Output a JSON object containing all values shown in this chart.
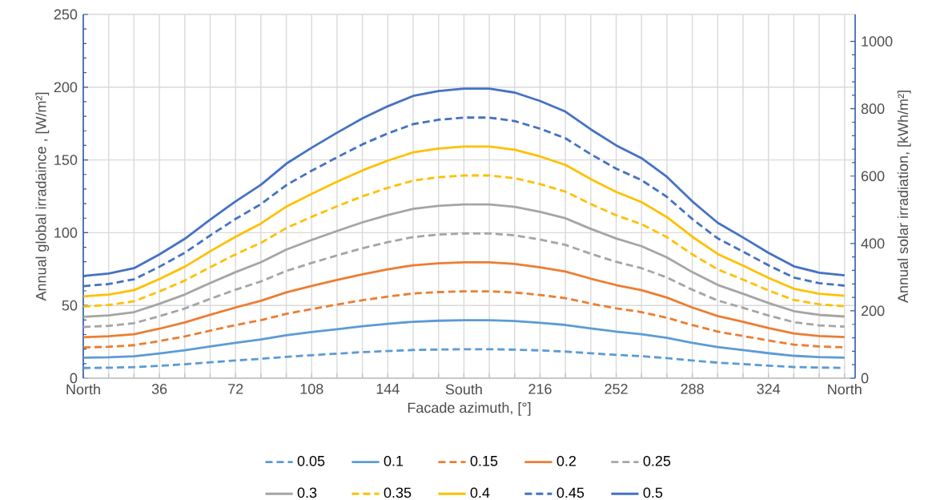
{
  "chart_data": {
    "type": "line",
    "xlabel": "Facade azimuth, [°]",
    "ylabel": "Annual global irradaince , [W/m²]",
    "y2label": "Annual solar irradiation, [kWh/m²]",
    "x": [
      0,
      12,
      24,
      36,
      48,
      60,
      72,
      84,
      96,
      108,
      120,
      132,
      144,
      156,
      168,
      180,
      192,
      204,
      216,
      228,
      240,
      252,
      264,
      276,
      288,
      300,
      312,
      324,
      336,
      348,
      360
    ],
    "xlim": [
      0,
      365
    ],
    "xticks": [
      {
        "value": 0,
        "label": "North"
      },
      {
        "value": 12,
        "label": null
      },
      {
        "value": 24,
        "label": null
      },
      36,
      {
        "value": 48,
        "label": null
      },
      {
        "value": 60,
        "label": null
      },
      72,
      {
        "value": 84,
        "label": null
      },
      {
        "value": 96,
        "label": null
      },
      108,
      {
        "value": 120,
        "label": null
      },
      {
        "value": 132,
        "label": null
      },
      144,
      {
        "value": 156,
        "label": null
      },
      {
        "value": 168,
        "label": null
      },
      {
        "value": 180,
        "label": "South"
      },
      {
        "value": 192,
        "label": null
      },
      {
        "value": 204,
        "label": null
      },
      216,
      {
        "value": 228,
        "label": null
      },
      {
        "value": 240,
        "label": null
      },
      252,
      {
        "value": 264,
        "label": null
      },
      {
        "value": 276,
        "label": null
      },
      288,
      {
        "value": 300,
        "label": null
      },
      {
        "value": 312,
        "label": null
      },
      324,
      {
        "value": 336,
        "label": null
      },
      {
        "value": 348,
        "label": null
      },
      {
        "value": 360,
        "label": "North"
      }
    ],
    "ylim": [
      0,
      250
    ],
    "yticks": [
      0,
      50,
      100,
      150,
      200,
      250
    ],
    "y2lim": [
      0,
      1080
    ],
    "y2ticks": [
      0,
      200,
      400,
      600,
      800,
      1000
    ],
    "grid": true,
    "legend": "bottom",
    "marker": "none",
    "series": [
      {
        "name": "0.05",
        "color": "#5b9bd5",
        "line_style": "dashed",
        "values": [
          7.0,
          7.2,
          7.6,
          8.5,
          9.6,
          10.9,
          12.2,
          13.3,
          14.7,
          15.8,
          16.9,
          17.9,
          18.7,
          19.4,
          19.7,
          19.9,
          19.9,
          19.6,
          19.1,
          18.3,
          17.1,
          16.0,
          15.1,
          13.8,
          12.2,
          10.7,
          9.7,
          8.6,
          7.7,
          7.3,
          7.1
        ]
      },
      {
        "name": "0.1",
        "color": "#5b9bd5",
        "line_style": "solid",
        "values": [
          14.1,
          14.4,
          15.1,
          17.0,
          19.2,
          21.8,
          24.3,
          26.6,
          29.5,
          31.7,
          33.7,
          35.7,
          37.4,
          38.8,
          39.5,
          39.8,
          39.8,
          39.3,
          38.1,
          36.6,
          34.2,
          32.0,
          30.2,
          27.7,
          24.3,
          21.4,
          19.3,
          17.2,
          15.4,
          14.5,
          14.1
        ]
      },
      {
        "name": "0.15",
        "color": "#ed7d31",
        "line_style": "dashed",
        "values": [
          21.1,
          21.6,
          22.7,
          25.5,
          28.7,
          32.7,
          36.5,
          39.9,
          44.2,
          47.5,
          50.6,
          53.6,
          56.1,
          58.2,
          59.2,
          59.7,
          59.7,
          58.9,
          57.2,
          55.0,
          51.3,
          48.0,
          45.4,
          41.5,
          36.5,
          32.0,
          29.0,
          25.9,
          23.1,
          21.8,
          21.2
        ]
      },
      {
        "name": "0.2",
        "color": "#ed7d31",
        "line_style": "solid",
        "values": [
          28.1,
          28.8,
          30.2,
          34.0,
          38.3,
          43.6,
          48.6,
          53.2,
          59.0,
          63.4,
          67.5,
          71.4,
          74.8,
          77.6,
          78.9,
          79.6,
          79.6,
          78.5,
          76.2,
          73.3,
          68.4,
          64.0,
          60.5,
          55.4,
          48.6,
          42.7,
          38.7,
          34.5,
          30.8,
          29.0,
          28.3
        ]
      },
      {
        "name": "0.25",
        "color": "#a5a5a5",
        "line_style": "dashed",
        "values": [
          35.2,
          36.0,
          37.8,
          42.6,
          47.9,
          54.5,
          60.8,
          66.5,
          73.7,
          79.2,
          84.4,
          89.3,
          93.5,
          97.0,
          98.7,
          99.5,
          99.5,
          98.2,
          95.3,
          91.6,
          85.5,
          80.0,
          75.6,
          69.2,
          60.8,
          53.4,
          48.4,
          43.1,
          38.5,
          36.3,
          35.4
        ]
      },
      {
        "name": "0.3",
        "color": "#a5a5a5",
        "line_style": "solid",
        "values": [
          42.2,
          43.1,
          45.4,
          51.1,
          57.5,
          65.4,
          72.9,
          79.7,
          88.4,
          95.0,
          101.2,
          107.1,
          112.1,
          116.4,
          118.4,
          119.4,
          119.4,
          117.8,
          114.3,
          109.9,
          102.6,
          96.0,
          90.7,
          83.0,
          72.9,
          64.1,
          58.0,
          51.7,
          46.1,
          43.5,
          42.4
        ]
      },
      {
        "name": "0.35",
        "color": "#ffc000",
        "line_style": "dashed",
        "values": [
          49.2,
          50.3,
          52.9,
          59.6,
          67.1,
          76.3,
          85.1,
          93.0,
          103.2,
          110.9,
          118.1,
          125.0,
          130.8,
          135.8,
          138.1,
          139.3,
          139.3,
          137.4,
          133.4,
          128.2,
          119.7,
          112.0,
          105.8,
          96.9,
          85.1,
          74.8,
          67.7,
          60.3,
          53.8,
          50.8,
          49.5
        ]
      },
      {
        "name": "0.4",
        "color": "#ffc000",
        "line_style": "solid",
        "values": [
          56.2,
          57.5,
          60.5,
          68.1,
          76.6,
          87.2,
          97.2,
          106.3,
          117.9,
          126.7,
          135.0,
          142.8,
          149.5,
          155.2,
          157.8,
          159.2,
          159.2,
          157.0,
          152.4,
          146.6,
          136.8,
          128.0,
          121.0,
          110.7,
          97.2,
          85.4,
          77.4,
          69.0,
          61.5,
          58.0,
          56.6
        ]
      },
      {
        "name": "0.45",
        "color": "#4472c4",
        "line_style": "dashed",
        "values": [
          63.3,
          64.7,
          68.0,
          76.6,
          86.2,
          98.1,
          109.4,
          119.6,
          132.7,
          142.6,
          151.8,
          160.7,
          168.2,
          174.6,
          177.6,
          179.1,
          179.1,
          176.7,
          171.5,
          164.9,
          153.9,
          144.0,
          136.1,
          124.6,
          109.4,
          96.1,
          87.0,
          77.6,
          69.2,
          65.3,
          63.6
        ]
      },
      {
        "name": "0.5",
        "color": "#4472c4",
        "line_style": "solid",
        "values": [
          70.3,
          71.9,
          75.6,
          85.1,
          95.8,
          109.0,
          121.5,
          132.9,
          147.4,
          158.4,
          168.7,
          178.5,
          186.9,
          194.0,
          197.3,
          199.0,
          199.0,
          196.3,
          190.5,
          183.2,
          171.0,
          160.0,
          151.2,
          138.4,
          121.5,
          106.8,
          96.7,
          86.2,
          76.9,
          72.5,
          70.7
        ]
      }
    ]
  }
}
